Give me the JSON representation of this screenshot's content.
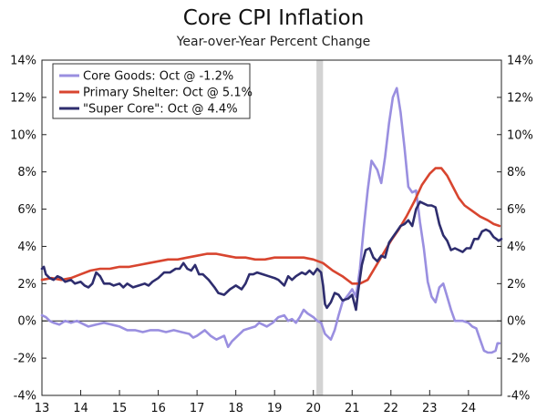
{
  "chart_data": {
    "type": "line",
    "title": "Core CPI Inflation",
    "subtitle": "Year-over-Year Percent Change",
    "xlabel": "",
    "ylabel": "",
    "xlim": [
      2013,
      2024.85
    ],
    "ylim": [
      -4,
      14
    ],
    "y_ticks": [
      -4,
      -2,
      0,
      2,
      4,
      6,
      8,
      10,
      12,
      14
    ],
    "y_tick_labels": [
      "-4%",
      "-2%",
      "0%",
      "2%",
      "4%",
      "6%",
      "8%",
      "10%",
      "12%",
      "14%"
    ],
    "x_ticks": [
      2013,
      2014,
      2015,
      2016,
      2017,
      2018,
      2019,
      2020,
      2021,
      2022,
      2023,
      2024
    ],
    "x_tick_labels": [
      "13",
      "14",
      "15",
      "16",
      "17",
      "18",
      "19",
      "20",
      "21",
      "22",
      "23",
      "24"
    ],
    "grid": false,
    "zero_line": true,
    "legend_position": "top-left",
    "recession_shading": [
      2020.08,
      2020.25
    ],
    "series": [
      {
        "name": "Core Goods: Oct @ -1.2%",
        "color": "#9A8FE0",
        "points": [
          [
            2013.0,
            0.3
          ],
          [
            2013.1,
            0.2
          ],
          [
            2013.2,
            0.0
          ],
          [
            2013.3,
            -0.1
          ],
          [
            2013.45,
            -0.2
          ],
          [
            2013.6,
            0.0
          ],
          [
            2013.75,
            -0.1
          ],
          [
            2013.9,
            0.0
          ],
          [
            2014.0,
            -0.1
          ],
          [
            2014.2,
            -0.3
          ],
          [
            2014.4,
            -0.2
          ],
          [
            2014.6,
            -0.1
          ],
          [
            2014.8,
            -0.2
          ],
          [
            2015.0,
            -0.3
          ],
          [
            2015.2,
            -0.5
          ],
          [
            2015.4,
            -0.5
          ],
          [
            2015.6,
            -0.6
          ],
          [
            2015.8,
            -0.5
          ],
          [
            2016.0,
            -0.5
          ],
          [
            2016.2,
            -0.6
          ],
          [
            2016.4,
            -0.5
          ],
          [
            2016.6,
            -0.6
          ],
          [
            2016.8,
            -0.7
          ],
          [
            2016.9,
            -0.9
          ],
          [
            2017.0,
            -0.8
          ],
          [
            2017.2,
            -0.5
          ],
          [
            2017.35,
            -0.8
          ],
          [
            2017.5,
            -1.0
          ],
          [
            2017.7,
            -0.8
          ],
          [
            2017.8,
            -1.4
          ],
          [
            2017.9,
            -1.1
          ],
          [
            2018.0,
            -0.9
          ],
          [
            2018.2,
            -0.5
          ],
          [
            2018.35,
            -0.4
          ],
          [
            2018.5,
            -0.3
          ],
          [
            2018.6,
            -0.1
          ],
          [
            2018.7,
            -0.2
          ],
          [
            2018.8,
            -0.3
          ],
          [
            2018.95,
            -0.1
          ],
          [
            2019.1,
            0.2
          ],
          [
            2019.25,
            0.3
          ],
          [
            2019.35,
            0.0
          ],
          [
            2019.45,
            0.1
          ],
          [
            2019.55,
            -0.1
          ],
          [
            2019.65,
            0.2
          ],
          [
            2019.75,
            0.6
          ],
          [
            2019.85,
            0.4
          ],
          [
            2020.0,
            0.2
          ],
          [
            2020.1,
            0.0
          ],
          [
            2020.2,
            -0.1
          ],
          [
            2020.3,
            -0.7
          ],
          [
            2020.45,
            -1.0
          ],
          [
            2020.55,
            -0.5
          ],
          [
            2020.65,
            0.3
          ],
          [
            2020.75,
            1.0
          ],
          [
            2020.9,
            1.4
          ],
          [
            2021.0,
            1.7
          ],
          [
            2021.1,
            1.3
          ],
          [
            2021.2,
            2.8
          ],
          [
            2021.3,
            5.0
          ],
          [
            2021.4,
            7.0
          ],
          [
            2021.5,
            8.6
          ],
          [
            2021.65,
            8.1
          ],
          [
            2021.75,
            7.4
          ],
          [
            2021.85,
            8.8
          ],
          [
            2021.95,
            10.6
          ],
          [
            2022.05,
            12.0
          ],
          [
            2022.15,
            12.5
          ],
          [
            2022.25,
            11.2
          ],
          [
            2022.35,
            9.3
          ],
          [
            2022.45,
            7.2
          ],
          [
            2022.55,
            6.9
          ],
          [
            2022.65,
            7.0
          ],
          [
            2022.75,
            5.3
          ],
          [
            2022.85,
            3.9
          ],
          [
            2022.95,
            2.1
          ],
          [
            2023.05,
            1.3
          ],
          [
            2023.15,
            1.0
          ],
          [
            2023.25,
            1.8
          ],
          [
            2023.35,
            2.0
          ],
          [
            2023.45,
            1.3
          ],
          [
            2023.55,
            0.6
          ],
          [
            2023.65,
            0.0
          ],
          [
            2023.75,
            0.0
          ],
          [
            2023.85,
            0.0
          ],
          [
            2024.0,
            -0.1
          ],
          [
            2024.1,
            -0.3
          ],
          [
            2024.2,
            -0.4
          ],
          [
            2024.3,
            -1.0
          ],
          [
            2024.4,
            -1.6
          ],
          [
            2024.5,
            -1.7
          ],
          [
            2024.6,
            -1.7
          ],
          [
            2024.7,
            -1.6
          ],
          [
            2024.75,
            -1.2
          ],
          [
            2024.8,
            -1.2
          ]
        ]
      },
      {
        "name": "Primary Shelter: Oct @ 5.1%",
        "color": "#D8452F",
        "points": [
          [
            2013.0,
            2.2
          ],
          [
            2013.25,
            2.3
          ],
          [
            2013.5,
            2.2
          ],
          [
            2013.75,
            2.3
          ],
          [
            2014.0,
            2.5
          ],
          [
            2014.25,
            2.7
          ],
          [
            2014.5,
            2.8
          ],
          [
            2014.75,
            2.8
          ],
          [
            2015.0,
            2.9
          ],
          [
            2015.25,
            2.9
          ],
          [
            2015.5,
            3.0
          ],
          [
            2015.75,
            3.1
          ],
          [
            2016.0,
            3.2
          ],
          [
            2016.25,
            3.3
          ],
          [
            2016.5,
            3.3
          ],
          [
            2016.75,
            3.4
          ],
          [
            2017.0,
            3.5
          ],
          [
            2017.25,
            3.6
          ],
          [
            2017.5,
            3.6
          ],
          [
            2017.75,
            3.5
          ],
          [
            2018.0,
            3.4
          ],
          [
            2018.25,
            3.4
          ],
          [
            2018.5,
            3.3
          ],
          [
            2018.75,
            3.3
          ],
          [
            2019.0,
            3.4
          ],
          [
            2019.25,
            3.4
          ],
          [
            2019.5,
            3.4
          ],
          [
            2019.75,
            3.4
          ],
          [
            2020.0,
            3.3
          ],
          [
            2020.25,
            3.1
          ],
          [
            2020.5,
            2.7
          ],
          [
            2020.75,
            2.4
          ],
          [
            2021.0,
            2.0
          ],
          [
            2021.2,
            2.0
          ],
          [
            2021.4,
            2.2
          ],
          [
            2021.6,
            2.9
          ],
          [
            2021.8,
            3.6
          ],
          [
            2022.0,
            4.3
          ],
          [
            2022.2,
            4.9
          ],
          [
            2022.4,
            5.6
          ],
          [
            2022.6,
            6.4
          ],
          [
            2022.8,
            7.3
          ],
          [
            2023.0,
            7.9
          ],
          [
            2023.15,
            8.2
          ],
          [
            2023.3,
            8.2
          ],
          [
            2023.45,
            7.8
          ],
          [
            2023.6,
            7.2
          ],
          [
            2023.75,
            6.6
          ],
          [
            2023.9,
            6.2
          ],
          [
            2024.1,
            5.9
          ],
          [
            2024.3,
            5.6
          ],
          [
            2024.5,
            5.4
          ],
          [
            2024.65,
            5.2
          ],
          [
            2024.8,
            5.1
          ]
        ]
      },
      {
        "name": "\"Super Core\": Oct @ 4.4%",
        "color": "#2E2D6E",
        "points": [
          [
            2013.0,
            2.8
          ],
          [
            2013.05,
            2.9
          ],
          [
            2013.1,
            2.5
          ],
          [
            2013.2,
            2.3
          ],
          [
            2013.3,
            2.2
          ],
          [
            2013.4,
            2.4
          ],
          [
            2013.5,
            2.3
          ],
          [
            2013.6,
            2.1
          ],
          [
            2013.75,
            2.2
          ],
          [
            2013.85,
            2.0
          ],
          [
            2014.0,
            2.1
          ],
          [
            2014.1,
            1.9
          ],
          [
            2014.2,
            1.8
          ],
          [
            2014.3,
            2.0
          ],
          [
            2014.4,
            2.6
          ],
          [
            2014.5,
            2.4
          ],
          [
            2014.6,
            2.0
          ],
          [
            2014.75,
            2.0
          ],
          [
            2014.85,
            1.9
          ],
          [
            2015.0,
            2.0
          ],
          [
            2015.1,
            1.8
          ],
          [
            2015.2,
            2.0
          ],
          [
            2015.35,
            1.8
          ],
          [
            2015.5,
            1.9
          ],
          [
            2015.65,
            2.0
          ],
          [
            2015.75,
            1.9
          ],
          [
            2015.85,
            2.1
          ],
          [
            2016.0,
            2.3
          ],
          [
            2016.15,
            2.6
          ],
          [
            2016.3,
            2.6
          ],
          [
            2016.45,
            2.8
          ],
          [
            2016.55,
            2.8
          ],
          [
            2016.65,
            3.1
          ],
          [
            2016.75,
            2.8
          ],
          [
            2016.85,
            2.7
          ],
          [
            2016.95,
            3.0
          ],
          [
            2017.05,
            2.5
          ],
          [
            2017.15,
            2.5
          ],
          [
            2017.3,
            2.2
          ],
          [
            2017.45,
            1.8
          ],
          [
            2017.55,
            1.5
          ],
          [
            2017.7,
            1.4
          ],
          [
            2017.85,
            1.7
          ],
          [
            2018.0,
            1.9
          ],
          [
            2018.15,
            1.7
          ],
          [
            2018.25,
            2.0
          ],
          [
            2018.35,
            2.5
          ],
          [
            2018.45,
            2.5
          ],
          [
            2018.55,
            2.6
          ],
          [
            2018.7,
            2.5
          ],
          [
            2018.85,
            2.4
          ],
          [
            2019.0,
            2.3
          ],
          [
            2019.1,
            2.2
          ],
          [
            2019.25,
            1.9
          ],
          [
            2019.35,
            2.4
          ],
          [
            2019.45,
            2.2
          ],
          [
            2019.55,
            2.4
          ],
          [
            2019.7,
            2.6
          ],
          [
            2019.8,
            2.5
          ],
          [
            2019.9,
            2.7
          ],
          [
            2020.0,
            2.5
          ],
          [
            2020.1,
            2.8
          ],
          [
            2020.2,
            2.6
          ],
          [
            2020.25,
            1.9
          ],
          [
            2020.3,
            0.9
          ],
          [
            2020.35,
            0.7
          ],
          [
            2020.45,
            1.0
          ],
          [
            2020.55,
            1.5
          ],
          [
            2020.65,
            1.4
          ],
          [
            2020.75,
            1.1
          ],
          [
            2020.9,
            1.2
          ],
          [
            2021.0,
            1.4
          ],
          [
            2021.05,
            1.0
          ],
          [
            2021.1,
            0.6
          ],
          [
            2021.15,
            1.5
          ],
          [
            2021.25,
            3.0
          ],
          [
            2021.35,
            3.8
          ],
          [
            2021.45,
            3.9
          ],
          [
            2021.55,
            3.4
          ],
          [
            2021.65,
            3.2
          ],
          [
            2021.75,
            3.5
          ],
          [
            2021.85,
            3.4
          ],
          [
            2021.95,
            4.2
          ],
          [
            2022.05,
            4.5
          ],
          [
            2022.15,
            4.8
          ],
          [
            2022.25,
            5.1
          ],
          [
            2022.35,
            5.2
          ],
          [
            2022.45,
            5.4
          ],
          [
            2022.55,
            5.1
          ],
          [
            2022.65,
            6.0
          ],
          [
            2022.75,
            6.4
          ],
          [
            2022.85,
            6.3
          ],
          [
            2022.95,
            6.2
          ],
          [
            2023.05,
            6.2
          ],
          [
            2023.15,
            6.1
          ],
          [
            2023.25,
            5.2
          ],
          [
            2023.35,
            4.6
          ],
          [
            2023.45,
            4.3
          ],
          [
            2023.55,
            3.8
          ],
          [
            2023.65,
            3.9
          ],
          [
            2023.75,
            3.8
          ],
          [
            2023.85,
            3.7
          ],
          [
            2023.95,
            3.9
          ],
          [
            2024.05,
            3.9
          ],
          [
            2024.15,
            4.4
          ],
          [
            2024.25,
            4.4
          ],
          [
            2024.35,
            4.8
          ],
          [
            2024.45,
            4.9
          ],
          [
            2024.55,
            4.8
          ],
          [
            2024.65,
            4.5
          ],
          [
            2024.72,
            4.4
          ],
          [
            2024.78,
            4.3
          ],
          [
            2024.85,
            4.4
          ]
        ]
      }
    ]
  }
}
